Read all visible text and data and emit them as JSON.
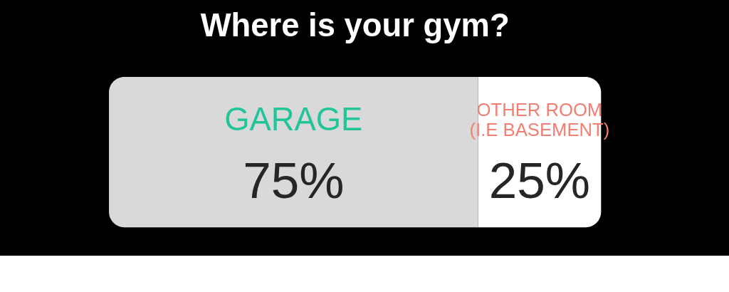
{
  "chart_data": {
    "type": "bar",
    "orientation": "horizontal",
    "stacked": true,
    "title": "Where is your gym?",
    "categories": [
      null
    ],
    "xlim": [
      0,
      100
    ],
    "tick_labels": false,
    "series": [
      {
        "name": "GARAGE",
        "color": "#d9d9d9",
        "values": [
          75
        ],
        "value_labels": [
          "75%"
        ]
      },
      {
        "name": "OTHER ROOM\n(I.E BASEMENT)",
        "color": "#ffffff",
        "values": [
          25
        ],
        "value_labels": [
          "25%"
        ]
      }
    ]
  }
}
